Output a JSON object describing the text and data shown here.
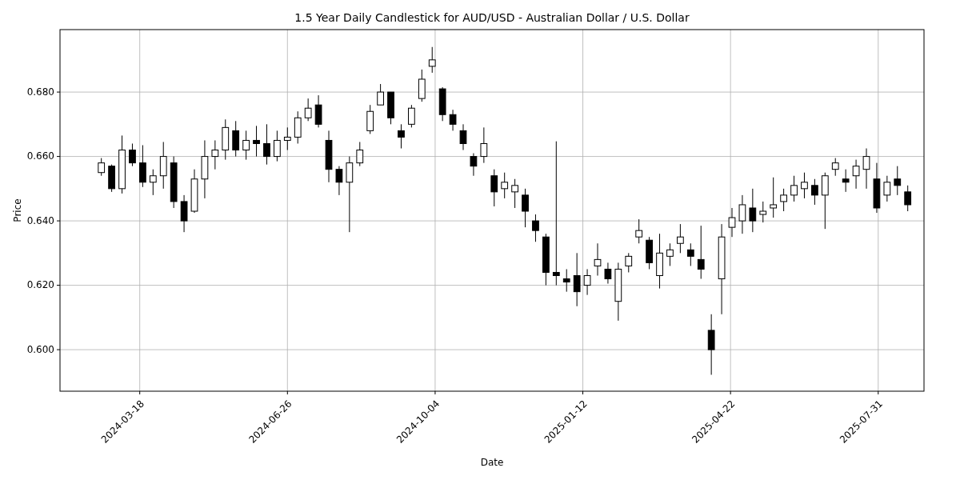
{
  "chart_data": {
    "type": "candlestick",
    "title": "1.5 Year Daily Candlestick for AUD/USD - Australian Dollar / U.S. Dollar",
    "xlabel": "Date",
    "ylabel": "Price",
    "color": "#000000",
    "grid": true,
    "xlim": [
      "2024-01-24",
      "2025-08-31"
    ],
    "xticks": [
      "2024-03-18",
      "2024-06-26",
      "2024-10-04",
      "2025-01-12",
      "2025-04-22",
      "2025-07-31"
    ],
    "ylim": [
      0.5871,
      0.6994
    ],
    "yticks": [
      {
        "value": 0.6,
        "label": "0.600"
      },
      {
        "value": 0.62,
        "label": "0.620"
      },
      {
        "value": 0.64,
        "label": "0.640"
      },
      {
        "value": 0.66,
        "label": "0.660"
      },
      {
        "value": 0.68,
        "label": "0.680"
      }
    ],
    "x": [
      "2024-02-21",
      "2024-02-28",
      "2024-03-06",
      "2024-03-13",
      "2024-03-20",
      "2024-03-27",
      "2024-04-03",
      "2024-04-10",
      "2024-04-17",
      "2024-04-24",
      "2024-05-01",
      "2024-05-08",
      "2024-05-15",
      "2024-05-22",
      "2024-05-29",
      "2024-06-05",
      "2024-06-12",
      "2024-06-19",
      "2024-06-26",
      "2024-07-03",
      "2024-07-10",
      "2024-07-17",
      "2024-07-24",
      "2024-07-31",
      "2024-08-07",
      "2024-08-14",
      "2024-08-21",
      "2024-08-28",
      "2024-09-04",
      "2024-09-11",
      "2024-09-18",
      "2024-09-25",
      "2024-10-02",
      "2024-10-09",
      "2024-10-16",
      "2024-10-23",
      "2024-10-30",
      "2024-11-06",
      "2024-11-13",
      "2024-11-20",
      "2024-11-27",
      "2024-12-04",
      "2024-12-11",
      "2024-12-18",
      "2024-12-25",
      "2025-01-01",
      "2025-01-08",
      "2025-01-15",
      "2025-01-22",
      "2025-01-29",
      "2025-02-05",
      "2025-02-12",
      "2025-02-19",
      "2025-02-26",
      "2025-03-05",
      "2025-03-12",
      "2025-03-19",
      "2025-03-26",
      "2025-04-02",
      "2025-04-09",
      "2025-04-16",
      "2025-04-23",
      "2025-04-30",
      "2025-05-07",
      "2025-05-14",
      "2025-05-21",
      "2025-05-28",
      "2025-06-04",
      "2025-06-11",
      "2025-06-18",
      "2025-06-25",
      "2025-07-02",
      "2025-07-09",
      "2025-07-16",
      "2025-07-23",
      "2025-07-30",
      "2025-08-06",
      "2025-08-13",
      "2025-08-20"
    ],
    "ohlc": [
      [
        0.655,
        0.6595,
        0.654,
        0.658
      ],
      [
        0.657,
        0.6575,
        0.649,
        0.65
      ],
      [
        0.65,
        0.6665,
        0.6485,
        0.662
      ],
      [
        0.662,
        0.664,
        0.657,
        0.658
      ],
      [
        0.658,
        0.6635,
        0.6505,
        0.652
      ],
      [
        0.652,
        0.656,
        0.648,
        0.654
      ],
      [
        0.654,
        0.6645,
        0.65,
        0.66
      ],
      [
        0.658,
        0.66,
        0.644,
        0.646
      ],
      [
        0.646,
        0.648,
        0.6365,
        0.64
      ],
      [
        0.643,
        0.656,
        0.6425,
        0.653
      ],
      [
        0.653,
        0.665,
        0.647,
        0.66
      ],
      [
        0.66,
        0.665,
        0.656,
        0.662
      ],
      [
        0.662,
        0.6715,
        0.659,
        0.669
      ],
      [
        0.668,
        0.671,
        0.66,
        0.662
      ],
      [
        0.662,
        0.668,
        0.659,
        0.665
      ],
      [
        0.665,
        0.6695,
        0.66,
        0.664
      ],
      [
        0.664,
        0.67,
        0.6575,
        0.66
      ],
      [
        0.66,
        0.668,
        0.6585,
        0.665
      ],
      [
        0.665,
        0.669,
        0.662,
        0.666
      ],
      [
        0.666,
        0.674,
        0.664,
        0.672
      ],
      [
        0.672,
        0.678,
        0.671,
        0.675
      ],
      [
        0.676,
        0.679,
        0.669,
        0.67
      ],
      [
        0.665,
        0.668,
        0.652,
        0.656
      ],
      [
        0.656,
        0.657,
        0.648,
        0.652
      ],
      [
        0.652,
        0.66,
        0.6365,
        0.658
      ],
      [
        0.658,
        0.6645,
        0.657,
        0.662
      ],
      [
        0.668,
        0.676,
        0.667,
        0.674
      ],
      [
        0.676,
        0.6825,
        0.676,
        0.68
      ],
      [
        0.68,
        0.68,
        0.67,
        0.672
      ],
      [
        0.668,
        0.67,
        0.6625,
        0.666
      ],
      [
        0.67,
        0.676,
        0.669,
        0.675
      ],
      [
        0.678,
        0.687,
        0.677,
        0.684
      ],
      [
        0.688,
        0.694,
        0.686,
        0.69
      ],
      [
        0.681,
        0.6815,
        0.671,
        0.673
      ],
      [
        0.673,
        0.6745,
        0.668,
        0.67
      ],
      [
        0.668,
        0.67,
        0.662,
        0.664
      ],
      [
        0.66,
        0.661,
        0.654,
        0.657
      ],
      [
        0.66,
        0.669,
        0.658,
        0.664
      ],
      [
        0.654,
        0.656,
        0.6445,
        0.649
      ],
      [
        0.65,
        0.655,
        0.647,
        0.652
      ],
      [
        0.649,
        0.653,
        0.644,
        0.651
      ],
      [
        0.648,
        0.65,
        0.638,
        0.643
      ],
      [
        0.64,
        0.642,
        0.6335,
        0.637
      ],
      [
        0.635,
        0.636,
        0.62,
        0.624
      ],
      [
        0.624,
        0.6647,
        0.62,
        0.623
      ],
      [
        0.622,
        0.625,
        0.618,
        0.621
      ],
      [
        0.623,
        0.63,
        0.6135,
        0.618
      ],
      [
        0.62,
        0.625,
        0.617,
        0.623
      ],
      [
        0.626,
        0.633,
        0.623,
        0.628
      ],
      [
        0.625,
        0.627,
        0.6205,
        0.622
      ],
      [
        0.615,
        0.627,
        0.609,
        0.625
      ],
      [
        0.626,
        0.63,
        0.624,
        0.629
      ],
      [
        0.635,
        0.6405,
        0.633,
        0.637
      ],
      [
        0.634,
        0.635,
        0.625,
        0.627
      ],
      [
        0.623,
        0.636,
        0.619,
        0.63
      ],
      [
        0.629,
        0.633,
        0.626,
        0.631
      ],
      [
        0.633,
        0.639,
        0.63,
        0.635
      ],
      [
        0.631,
        0.633,
        0.626,
        0.629
      ],
      [
        0.628,
        0.6385,
        0.622,
        0.625
      ],
      [
        0.606,
        0.611,
        0.5922,
        0.6
      ],
      [
        0.622,
        0.639,
        0.611,
        0.635
      ],
      [
        0.638,
        0.644,
        0.635,
        0.641
      ],
      [
        0.64,
        0.648,
        0.636,
        0.645
      ],
      [
        0.644,
        0.65,
        0.6365,
        0.64
      ],
      [
        0.642,
        0.646,
        0.6395,
        0.643
      ],
      [
        0.644,
        0.6535,
        0.641,
        0.645
      ],
      [
        0.646,
        0.65,
        0.643,
        0.648
      ],
      [
        0.648,
        0.654,
        0.646,
        0.651
      ],
      [
        0.65,
        0.655,
        0.647,
        0.652
      ],
      [
        0.651,
        0.653,
        0.645,
        0.648
      ],
      [
        0.648,
        0.655,
        0.6375,
        0.654
      ],
      [
        0.656,
        0.6595,
        0.654,
        0.658
      ],
      [
        0.653,
        0.656,
        0.649,
        0.652
      ],
      [
        0.654,
        0.659,
        0.65,
        0.657
      ],
      [
        0.656,
        0.6625,
        0.65,
        0.66
      ],
      [
        0.653,
        0.658,
        0.6425,
        0.644
      ],
      [
        0.648,
        0.654,
        0.646,
        0.652
      ],
      [
        0.653,
        0.657,
        0.648,
        0.651
      ],
      [
        0.649,
        0.651,
        0.643,
        0.645
      ]
    ]
  }
}
